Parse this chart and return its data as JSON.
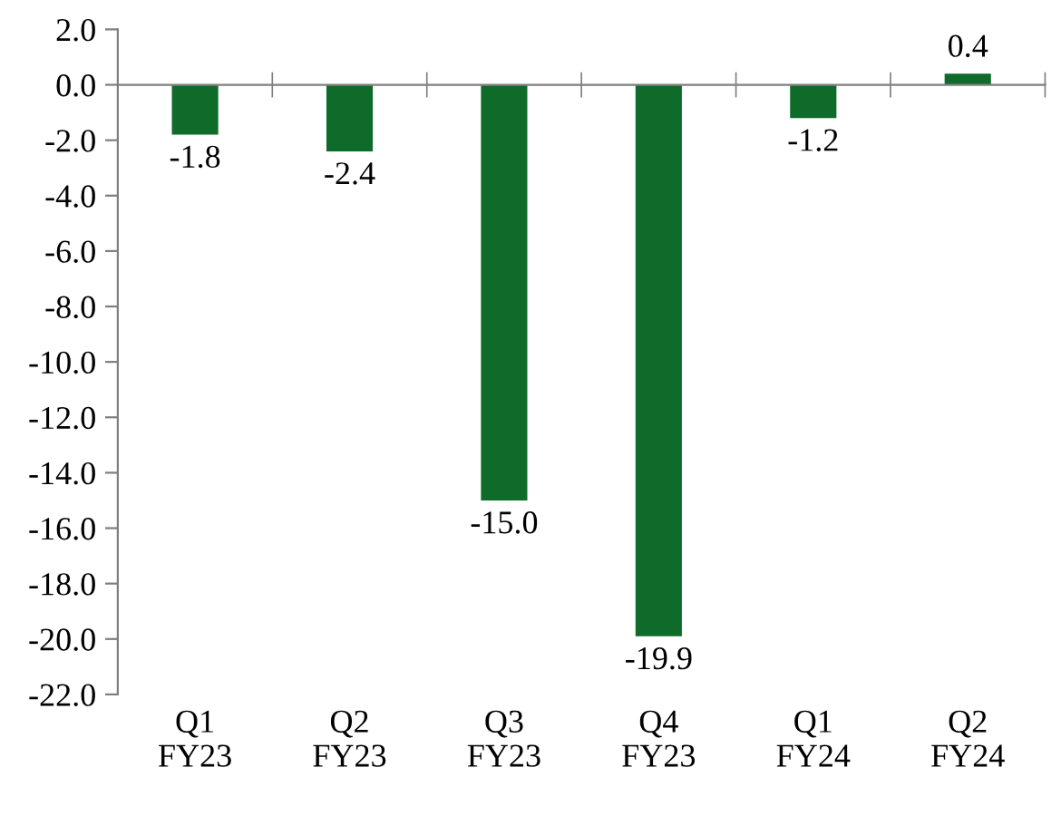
{
  "chart_data": {
    "type": "bar",
    "categories": [
      "Q1\nFY23",
      "Q2\nFY23",
      "Q3\nFY23",
      "Q4\nFY23",
      "Q1\nFY24",
      "Q2\nFY24"
    ],
    "values": [
      -1.8,
      -2.4,
      -15.0,
      -19.9,
      -1.2,
      0.4
    ],
    "color": "#0f6b2a",
    "ylim": [
      -22,
      2
    ],
    "yticks": [
      {
        "value": 2,
        "label": "2.0"
      },
      {
        "value": 0,
        "label": "0.0"
      },
      {
        "value": -2,
        "label": "-2.0"
      },
      {
        "value": -4,
        "label": "-4.0"
      },
      {
        "value": -6,
        "label": "-6.0"
      },
      {
        "value": -8,
        "label": "-8.0"
      },
      {
        "value": -10,
        "label": "-10.0"
      },
      {
        "value": -12,
        "label": "-12.0"
      },
      {
        "value": -14,
        "label": "-14.0"
      },
      {
        "value": -16,
        "label": "-16.0"
      },
      {
        "value": -18,
        "label": "-18.0"
      },
      {
        "value": -20,
        "label": "-20.0"
      },
      {
        "value": -22,
        "label": "-22.0"
      }
    ],
    "value_labels": [
      "-1.8",
      "-2.4",
      "-15.0",
      "-19.9",
      "-1.2",
      "0.4"
    ],
    "legend": false
  }
}
